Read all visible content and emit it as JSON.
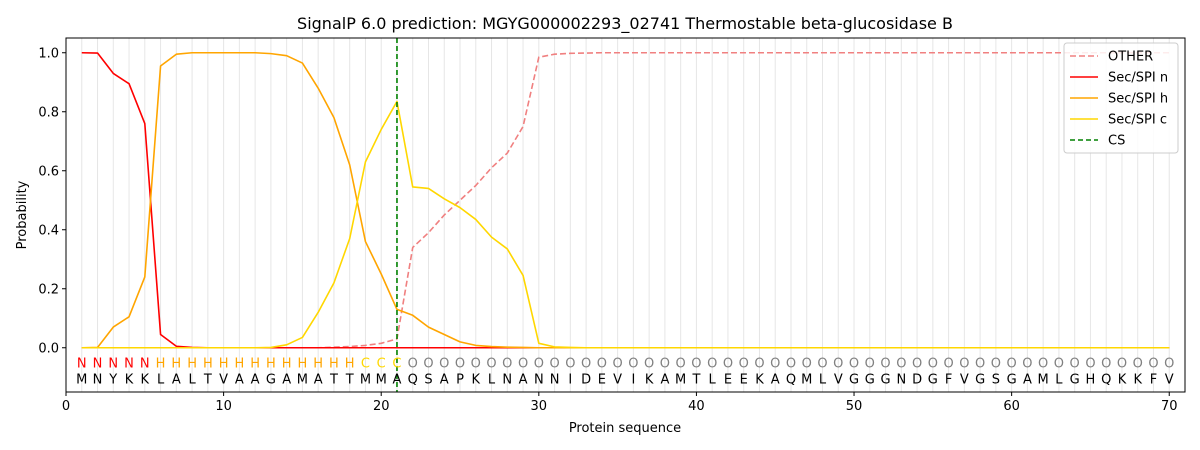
{
  "chart_data": {
    "type": "line",
    "title": "SignalP 6.0 prediction: MGYG000002293_02741 Thermostable beta-glucosidase B",
    "xlabel": "Protein sequence",
    "ylabel": "Probability",
    "xlim": [
      0,
      71
    ],
    "ylim": [
      -0.15,
      1.05
    ],
    "xticks": [
      0,
      10,
      20,
      30,
      40,
      50,
      60,
      70
    ],
    "yticks": [
      0.0,
      0.2,
      0.4,
      0.6,
      0.8,
      1.0
    ],
    "xtick_labels": [
      "0",
      "10",
      "20",
      "30",
      "40",
      "50",
      "60",
      "70"
    ],
    "ytick_labels": [
      "0.0",
      "0.2",
      "0.4",
      "0.6",
      "0.8",
      "1.0"
    ],
    "grid": "vertical lines at every residue",
    "legend_position": "top-right",
    "x": [
      1,
      2,
      3,
      4,
      5,
      6,
      7,
      8,
      9,
      10,
      11,
      12,
      13,
      14,
      15,
      16,
      17,
      18,
      19,
      20,
      21,
      22,
      23,
      24,
      25,
      26,
      27,
      28,
      29,
      30,
      31,
      32,
      33,
      34,
      35,
      36,
      37,
      38,
      39,
      40,
      41,
      42,
      43,
      44,
      45,
      46,
      47,
      48,
      49,
      50,
      51,
      52,
      53,
      54,
      55,
      56,
      57,
      58,
      59,
      60,
      61,
      62,
      63,
      64,
      65,
      66,
      67,
      68,
      69,
      70
    ],
    "sequence": [
      "M",
      "N",
      "Y",
      "K",
      "K",
      "L",
      "A",
      "L",
      "T",
      "V",
      "A",
      "A",
      "G",
      "A",
      "M",
      "A",
      "T",
      "T",
      "M",
      "M",
      "A",
      "Q",
      "S",
      "A",
      "P",
      "K",
      "L",
      "N",
      "A",
      "N",
      "N",
      "I",
      "D",
      "E",
      "V",
      "I",
      "K",
      "A",
      "M",
      "T",
      "L",
      "E",
      "E",
      "K",
      "A",
      "Q",
      "M",
      "L",
      "V",
      "G",
      "G",
      "G",
      "N",
      "D",
      "G",
      "F",
      "V",
      "G",
      "S",
      "G",
      "A",
      "M",
      "L",
      "G",
      "H",
      "Q",
      "K",
      "K",
      "F",
      "V"
    ],
    "regions": [
      "N",
      "N",
      "N",
      "N",
      "N",
      "H",
      "H",
      "H",
      "H",
      "H",
      "H",
      "H",
      "H",
      "H",
      "H",
      "H",
      "H",
      "H",
      "C",
      "C",
      "C",
      "O",
      "O",
      "O",
      "O",
      "O",
      "O",
      "O",
      "O",
      "O",
      "O",
      "O",
      "O",
      "O",
      "O",
      "O",
      "O",
      "O",
      "O",
      "O",
      "O",
      "O",
      "O",
      "O",
      "O",
      "O",
      "O",
      "O",
      "O",
      "O",
      "O",
      "O",
      "O",
      "O",
      "O",
      "O",
      "O",
      "O",
      "O",
      "O",
      "O",
      "O",
      "O",
      "O",
      "O",
      "O",
      "O",
      "O",
      "O",
      "O"
    ],
    "region_colors": {
      "N": "#ff0000",
      "H": "#ffa500",
      "C": "#ffd700",
      "O": "#808080"
    },
    "series": [
      {
        "name": "OTHER",
        "color": "#f08080",
        "dash": true,
        "values": [
          0,
          0,
          0,
          0,
          0,
          0,
          0,
          0,
          0,
          0,
          0,
          0,
          0,
          0,
          0,
          0,
          0.002,
          0.004,
          0.008,
          0.015,
          0.03,
          0.34,
          0.39,
          0.45,
          0.5,
          0.55,
          0.61,
          0.66,
          0.75,
          0.985,
          0.995,
          0.998,
          0.999,
          1,
          1,
          1,
          1,
          1,
          1,
          1,
          1,
          1,
          1,
          1,
          1,
          1,
          1,
          1,
          1,
          1,
          1,
          1,
          1,
          1,
          1,
          1,
          1,
          1,
          1,
          1,
          1,
          1,
          1,
          1,
          1,
          1,
          1,
          1,
          1,
          1
        ]
      },
      {
        "name": "Sec/SPI n",
        "color": "#ff0000",
        "dash": false,
        "values": [
          1.0,
          0.999,
          0.93,
          0.895,
          0.76,
          0.045,
          0.005,
          0.001,
          0,
          0,
          0,
          0,
          0,
          0,
          0,
          0,
          0,
          0,
          0,
          0,
          0,
          0,
          0,
          0,
          0,
          0,
          0,
          0,
          0,
          0,
          0,
          0,
          0,
          0,
          0,
          0,
          0,
          0,
          0,
          0,
          0,
          0,
          0,
          0,
          0,
          0,
          0,
          0,
          0,
          0,
          0,
          0,
          0,
          0,
          0,
          0,
          0,
          0,
          0,
          0,
          0,
          0,
          0,
          0,
          0,
          0,
          0,
          0,
          0,
          0
        ]
      },
      {
        "name": "Sec/SPI h",
        "color": "#ffa500",
        "dash": false,
        "values": [
          0,
          0.001,
          0.07,
          0.105,
          0.24,
          0.955,
          0.995,
          1.0,
          1.0,
          1.0,
          1.0,
          1.0,
          0.997,
          0.99,
          0.965,
          0.88,
          0.78,
          0.62,
          0.36,
          0.25,
          0.13,
          0.11,
          0.07,
          0.045,
          0.02,
          0.008,
          0.004,
          0.002,
          0.001,
          0,
          0,
          0,
          0,
          0,
          0,
          0,
          0,
          0,
          0,
          0,
          0,
          0,
          0,
          0,
          0,
          0,
          0,
          0,
          0,
          0,
          0,
          0,
          0,
          0,
          0,
          0,
          0,
          0,
          0,
          0,
          0,
          0,
          0,
          0,
          0,
          0,
          0,
          0,
          0,
          0
        ]
      },
      {
        "name": "Sec/SPI c",
        "color": "#ffd700",
        "dash": false,
        "values": [
          0,
          0,
          0,
          0,
          0,
          0,
          0,
          0,
          0,
          0,
          0,
          0,
          0.001,
          0.01,
          0.035,
          0.12,
          0.22,
          0.37,
          0.63,
          0.74,
          0.835,
          0.545,
          0.54,
          0.505,
          0.475,
          0.435,
          0.375,
          0.335,
          0.245,
          0.015,
          0.003,
          0.001,
          0,
          0,
          0,
          0,
          0,
          0,
          0,
          0,
          0,
          0,
          0,
          0,
          0,
          0,
          0,
          0,
          0,
          0,
          0,
          0,
          0,
          0,
          0,
          0,
          0,
          0,
          0,
          0,
          0,
          0,
          0,
          0,
          0,
          0,
          0,
          0,
          0,
          0
        ]
      }
    ],
    "cs": {
      "name": "CS",
      "x": 21,
      "color": "#008000"
    }
  }
}
